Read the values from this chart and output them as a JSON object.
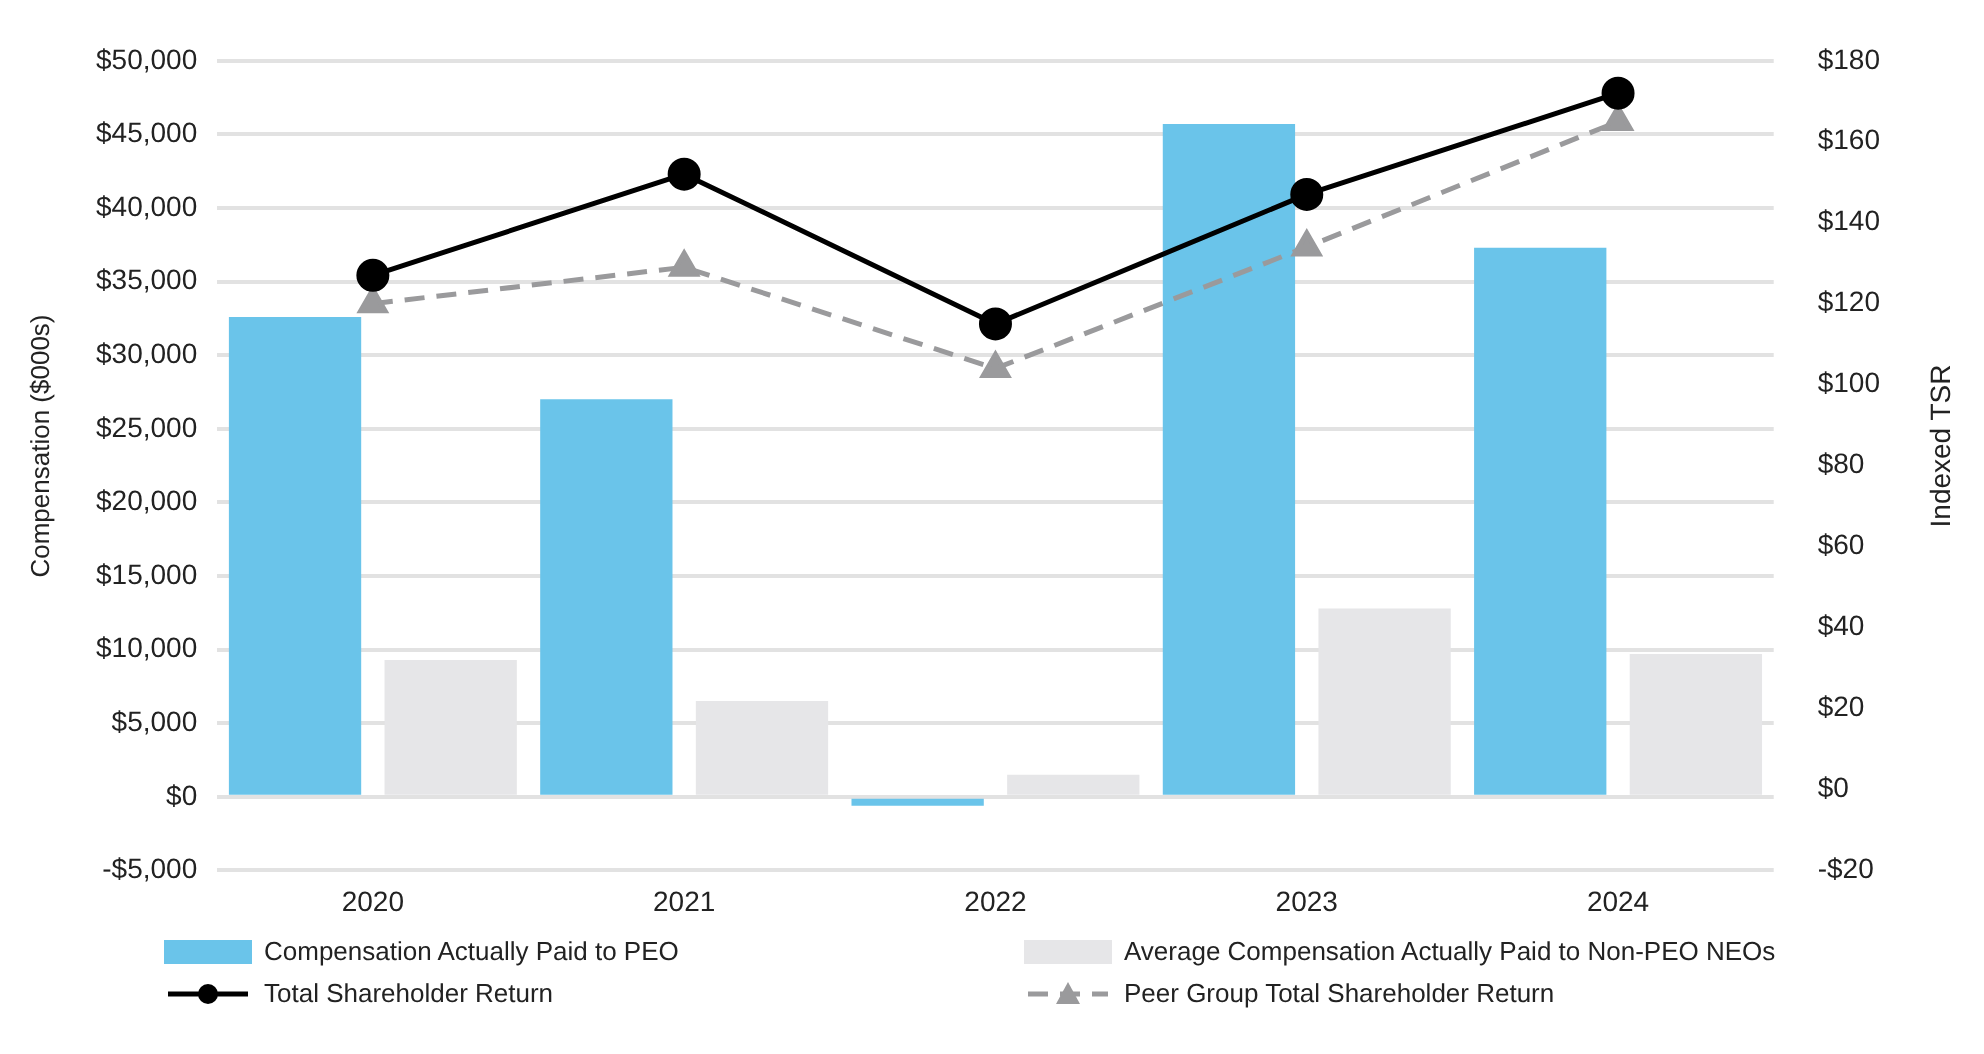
{
  "chart_data": {
    "type": "bar",
    "categories": [
      "2020",
      "2021",
      "2022",
      "2023",
      "2024"
    ],
    "ylabel": "Compensation ($000s)",
    "y2label": "Indexed TSR",
    "ylim": [
      -5000,
      50000
    ],
    "yticks": [
      {
        "value": -5000,
        "label": "-$5,000"
      },
      {
        "value": 0,
        "label": "$0"
      },
      {
        "value": 5000,
        "label": "$5,000"
      },
      {
        "value": 10000,
        "label": "$10,000"
      },
      {
        "value": 15000,
        "label": "$15,000"
      },
      {
        "value": 20000,
        "label": "$20,000"
      },
      {
        "value": 25000,
        "label": "$25,000"
      },
      {
        "value": 30000,
        "label": "$30,000"
      },
      {
        "value": 35000,
        "label": "$35,000"
      },
      {
        "value": 40000,
        "label": "$40,000"
      },
      {
        "value": 45000,
        "label": "$45,000"
      },
      {
        "value": 50000,
        "label": "$50,000"
      }
    ],
    "y2lim": [
      -20,
      180
    ],
    "y2ticks": [
      {
        "value": -20,
        "label": "-$20"
      },
      {
        "value": 0,
        "label": "$0"
      },
      {
        "value": 20,
        "label": "$20"
      },
      {
        "value": 40,
        "label": "$40"
      },
      {
        "value": 60,
        "label": "$60"
      },
      {
        "value": 80,
        "label": "$80"
      },
      {
        "value": 100,
        "label": "$100"
      },
      {
        "value": 120,
        "label": "$120"
      },
      {
        "value": 140,
        "label": "$140"
      },
      {
        "value": 160,
        "label": "$160"
      },
      {
        "value": 180,
        "label": "$180"
      }
    ],
    "grid": "y",
    "legend": "bottom",
    "series": [
      {
        "name": "Compensation Actually Paid to PEO",
        "color": "#6ac4ea",
        "values": [
          32600,
          27000,
          -600,
          45700,
          37300
        ]
      },
      {
        "name": "Average Compensation Actually Paid to Non-PEO NEOs",
        "color": "#e6e6e8",
        "values": [
          9300,
          6500,
          1500,
          12800,
          9700
        ]
      },
      {
        "name": "Total Shareholder Return",
        "type": "line",
        "axis": "y2",
        "color": "#000000",
        "marker": "circle",
        "line_style": "solid",
        "values": [
          127,
          152,
          115,
          147,
          172
        ]
      },
      {
        "name": "Peer Group Total Shareholder Return",
        "type": "line",
        "axis": "y2",
        "color": "#9a9a9c",
        "marker": "triangle",
        "line_style": "dashed",
        "values": [
          120,
          129,
          104,
          134,
          165
        ]
      }
    ]
  }
}
